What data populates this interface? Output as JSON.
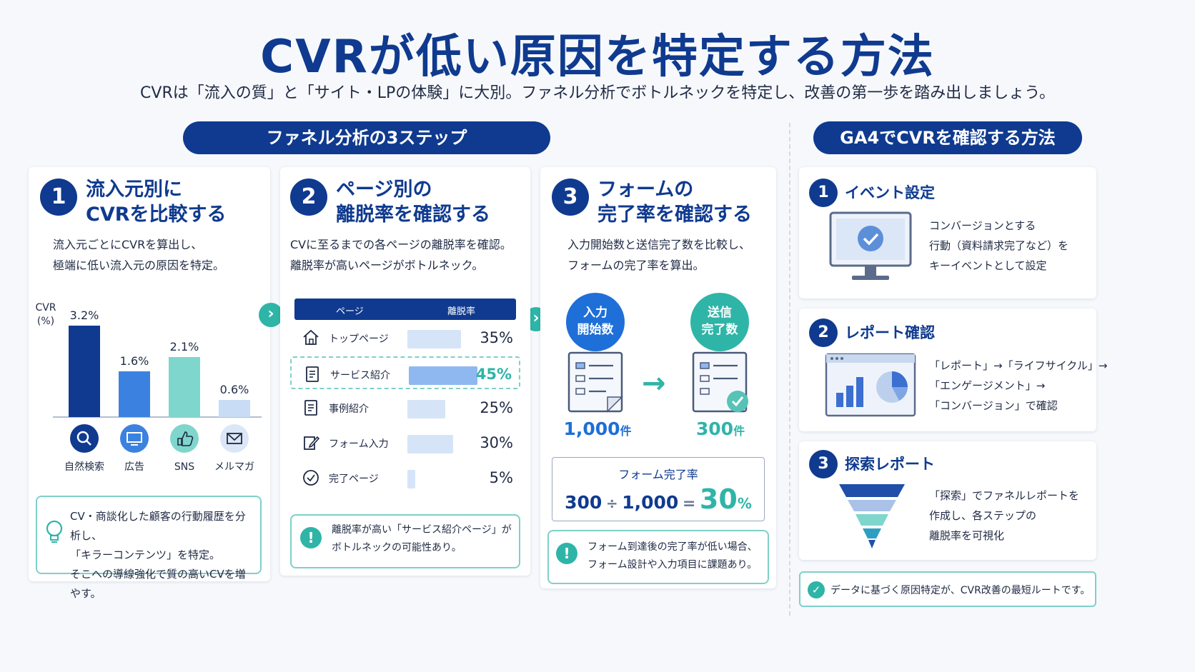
{
  "title": "CVRが低い原因を特定する方法",
  "subtitle": "CVRは「流入の質」と「サイト・LPの体験」に大別。ファネル分析でボトルネックを特定し、改善の第一歩を踏み出しましょう。",
  "funnel_header": "ファネル分析の3ステップ",
  "ga4_header": "GA4でCVRを確認する方法",
  "step1": {
    "num": "1",
    "title_line1": "流入元別に",
    "title_line2": "CVRを比較する",
    "desc_line1": "流入元ごとにCVRを算出し、",
    "desc_line2": "極端に低い流入元の原因を特定。",
    "axis_label_line1": "CVR",
    "axis_label_line2": "(%)",
    "note_line1": "CV・商談化した顧客の行動履歴を分析し、",
    "note_line2": "「キラーコンテンツ」を特定。",
    "note_line3": "そこへの導線強化で質の高いCVを増やす。"
  },
  "chart_data": {
    "type": "bar",
    "categories": [
      "自然検索",
      "広告",
      "SNS",
      "メルマガ"
    ],
    "values": [
      3.2,
      1.6,
      2.1,
      0.6
    ],
    "value_labels": [
      "3.2%",
      "1.6%",
      "2.1%",
      "0.6%"
    ],
    "ylabel": "CVR (%)",
    "ylim": [
      0,
      3.5
    ],
    "colors": [
      "#0f3a8f",
      "#3b82e0",
      "#7fd6cc",
      "#c9dcf5"
    ],
    "icons": [
      "search-icon",
      "monitor-icon",
      "thumbs-up-icon",
      "mail-icon"
    ]
  },
  "step2": {
    "num": "2",
    "title_line1": "ページ別の",
    "title_line2": "離脱率を確認する",
    "desc_line1": "CVに至るまでの各ページの離脱率を確認。",
    "desc_line2": "離脱率が高いページがボトルネック。",
    "col_page": "ページ",
    "col_rate": "離脱率",
    "rows": [
      {
        "label": "トップページ",
        "value": "35%",
        "rate": 35,
        "icon": "home-icon",
        "highlight": false
      },
      {
        "label": "サービス紹介",
        "value": "45%",
        "rate": 45,
        "icon": "document-icon",
        "highlight": true
      },
      {
        "label": "事例紹介",
        "value": "25%",
        "rate": 25,
        "icon": "document-icon",
        "highlight": false
      },
      {
        "label": "フォーム入力",
        "value": "30%",
        "rate": 30,
        "icon": "pencil-icon",
        "highlight": false
      },
      {
        "label": "完了ページ",
        "value": "5%",
        "rate": 5,
        "icon": "check-circle-icon",
        "highlight": false
      }
    ],
    "note_line1": "離脱率が高い「サービス紹介ページ」が",
    "note_line2": "ボトルネックの可能性あり。"
  },
  "step3": {
    "num": "3",
    "title_line1": "フォームの",
    "title_line2": "完了率を確認する",
    "desc_line1": "入力開始数と送信完了数を比較し、",
    "desc_line2": "フォームの完了率を算出。",
    "start_label_line1": "入力",
    "start_label_line2": "開始数",
    "done_label_line1": "送信",
    "done_label_line2": "完了数",
    "start_value": "1,000",
    "done_value": "300",
    "unit": "件",
    "rate_title": "フォーム完了率",
    "formula_a": "300",
    "formula_op": "÷",
    "formula_b": "1,000",
    "formula_eq": "=",
    "formula_result": "30",
    "formula_pct": "%",
    "note_line1": "フォーム到達後の完了率が低い場合、",
    "note_line2": "フォーム設計や入力項目に課題あり。"
  },
  "ga4": {
    "items": [
      {
        "num": "1",
        "title": "イベント設定",
        "lines": [
          "コンバージョンとする",
          "行動（資料請求完了など）を",
          "キーイベントとして設定"
        ]
      },
      {
        "num": "2",
        "title": "レポート確認",
        "lines": [
          "「レポート」→「ライフサイクル」→",
          "「エンゲージメント」→",
          "「コンバージョン」で確認"
        ]
      },
      {
        "num": "3",
        "title": "探索レポート",
        "lines": [
          "「探索」でファネルレポートを",
          "作成し、各ステップの",
          "離脱率を可視化"
        ]
      }
    ],
    "footer": "データに基づく原因特定が、CVR改善の最短ルートです。"
  },
  "colors": {
    "navy": "#0f3a8f",
    "teal": "#2eb5a8",
    "light_blue": "#c9dcf5"
  }
}
